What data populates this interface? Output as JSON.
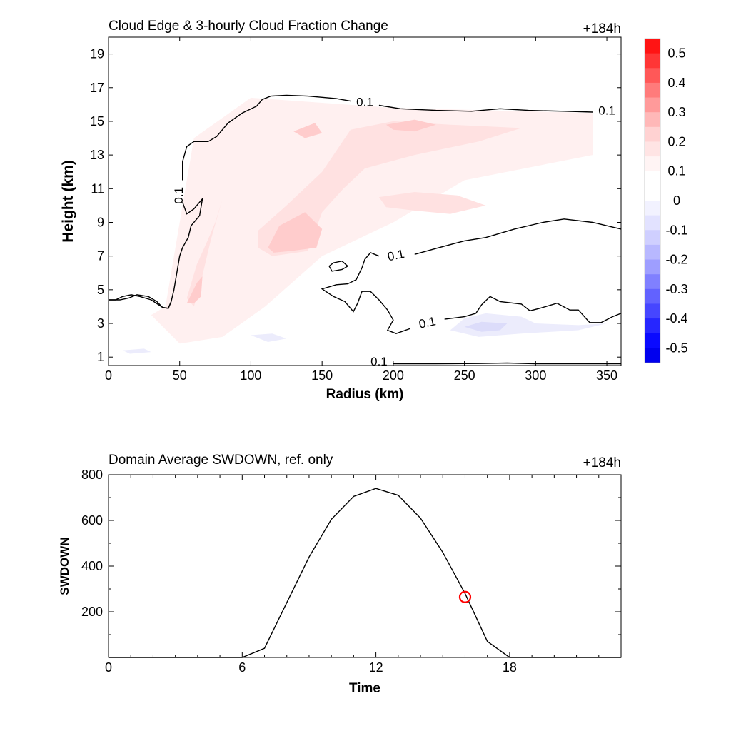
{
  "chart_data": [
    {
      "type": "contour",
      "title": "Cloud Edge & 3-hourly Cloud Fraction Change",
      "time_label": "+184h",
      "xlabel": "Radius (km)",
      "ylabel": "Height (km)",
      "xlim": [
        0,
        360
      ],
      "ylim": [
        0.5,
        20
      ],
      "x_ticks": [
        0,
        50,
        100,
        150,
        200,
        250,
        300,
        350
      ],
      "y_ticks": [
        1,
        3,
        5,
        7,
        9,
        11,
        13,
        15,
        17,
        19
      ],
      "contour_level": "0.1",
      "contour_labels": [
        {
          "text": "0.1",
          "x": 180,
          "y": 16.1
        },
        {
          "text": "0.1",
          "x": 350,
          "y": 15.6
        },
        {
          "text": "0.1",
          "x": 50,
          "y": 10.6
        },
        {
          "text": "0.1",
          "x": 202,
          "y": 7.0
        },
        {
          "text": "0.1",
          "x": 224,
          "y": 3.0
        },
        {
          "text": "0.1",
          "x": 190,
          "y": 0.7
        }
      ],
      "contour_lines": [
        [
          [
            52,
            11.5
          ],
          [
            52,
            12.6
          ],
          [
            55,
            13.5
          ],
          [
            60,
            13.8
          ],
          [
            70,
            13.8
          ],
          [
            76,
            14.1
          ],
          [
            84,
            14.9
          ],
          [
            94,
            15.5
          ],
          [
            104,
            15.9
          ],
          [
            108,
            16.3
          ],
          [
            114,
            16.5
          ],
          [
            125,
            16.55
          ],
          [
            140,
            16.5
          ],
          [
            160,
            16.35
          ],
          [
            170,
            16.2
          ]
        ],
        [
          [
            190,
            15.95
          ],
          [
            205,
            15.75
          ],
          [
            230,
            15.65
          ],
          [
            255,
            15.6
          ],
          [
            275,
            15.75
          ],
          [
            295,
            15.65
          ],
          [
            320,
            15.6
          ],
          [
            340,
            15.55
          ]
        ],
        [
          [
            52,
            10.2
          ],
          [
            55,
            9.5
          ],
          [
            60,
            9.8
          ],
          [
            66,
            10.4
          ],
          [
            64,
            9.4
          ],
          [
            58,
            8.8
          ],
          [
            56,
            8.1
          ],
          [
            52,
            7.5
          ],
          [
            50,
            7.0
          ],
          [
            48,
            6.0
          ],
          [
            46,
            5.0
          ],
          [
            44,
            4.3
          ],
          [
            42,
            3.9
          ],
          [
            38,
            3.95
          ],
          [
            34,
            4.3
          ],
          [
            28,
            4.6
          ],
          [
            20,
            4.7
          ],
          [
            14,
            4.5
          ],
          [
            8,
            4.4
          ],
          [
            0,
            4.4
          ]
        ],
        [
          [
            0,
            4.4
          ],
          [
            5,
            4.4
          ],
          [
            10,
            4.6
          ],
          [
            16,
            4.7
          ],
          [
            22,
            4.6
          ],
          [
            30,
            4.4
          ],
          [
            38,
            3.95
          ],
          [
            42,
            3.9
          ],
          [
            44,
            4.3
          ]
        ],
        [
          [
            190,
            7.0
          ],
          [
            184,
            7.2
          ],
          [
            180,
            6.8
          ],
          [
            178,
            6.3
          ],
          [
            174,
            5.6
          ],
          [
            168,
            5.35
          ],
          [
            160,
            5.3
          ],
          [
            150,
            5.05
          ],
          [
            158,
            4.6
          ],
          [
            166,
            4.3
          ],
          [
            172,
            3.7
          ],
          [
            175,
            4.2
          ],
          [
            178,
            4.9
          ],
          [
            184,
            4.9
          ],
          [
            190,
            4.4
          ],
          [
            196,
            3.8
          ],
          [
            200,
            3.2
          ],
          [
            196,
            2.6
          ],
          [
            202,
            2.4
          ],
          [
            212,
            2.7
          ]
        ],
        [
          [
            215,
            7.1
          ],
          [
            232,
            7.5
          ],
          [
            250,
            7.9
          ],
          [
            265,
            8.1
          ],
          [
            285,
            8.6
          ],
          [
            305,
            9.0
          ],
          [
            320,
            9.2
          ],
          [
            340,
            9.0
          ],
          [
            360,
            8.6
          ]
        ],
        [
          [
            155,
            6.4
          ],
          [
            158,
            6.6
          ],
          [
            164,
            6.7
          ],
          [
            168,
            6.4
          ],
          [
            164,
            6.2
          ],
          [
            157,
            6.1
          ],
          [
            155,
            6.4
          ]
        ],
        [
          [
            236,
            3.25
          ],
          [
            250,
            3.4
          ],
          [
            258,
            3.6
          ],
          [
            262,
            4.1
          ],
          [
            268,
            4.6
          ],
          [
            275,
            4.3
          ],
          [
            290,
            4.15
          ],
          [
            296,
            3.75
          ],
          [
            303,
            3.9
          ],
          [
            315,
            4.2
          ],
          [
            324,
            3.8
          ],
          [
            330,
            3.8
          ],
          [
            338,
            3.05
          ],
          [
            346,
            3.05
          ],
          [
            354,
            3.4
          ],
          [
            360,
            3.6
          ]
        ],
        [
          [
            200,
            0.6
          ],
          [
            230,
            0.6
          ],
          [
            260,
            0.62
          ],
          [
            280,
            0.65
          ],
          [
            300,
            0.6
          ],
          [
            330,
            0.6
          ],
          [
            360,
            0.6
          ]
        ]
      ],
      "shaded_regions": [
        {
          "level": 0.05,
          "color": "#fff0f0",
          "polygon": [
            [
              40,
              4
            ],
            [
              60,
              14
            ],
            [
              100,
              16.4
            ],
            [
              200,
              15.8
            ],
            [
              340,
              15.5
            ],
            [
              340,
              13
            ],
            [
              250,
              11.5
            ],
            [
              200,
              9
            ],
            [
              150,
              7
            ],
            [
              110,
              4
            ],
            [
              80,
              2.2
            ],
            [
              50,
              1.8
            ],
            [
              30,
              3.5
            ]
          ]
        },
        {
          "level": 0.1,
          "color": "#ffe1e1",
          "polygon": [
            [
              105,
              8.5
            ],
            [
              125,
              10
            ],
            [
              150,
              12
            ],
            [
              170,
              14.5
            ],
            [
              200,
              15
            ],
            [
              240,
              14.8
            ],
            [
              290,
              14.6
            ],
            [
              260,
              13.8
            ],
            [
              215,
              13
            ],
            [
              180,
              12.2
            ],
            [
              165,
              11
            ],
            [
              150,
              9.6
            ],
            [
              140,
              7.3
            ],
            [
              115,
              7
            ],
            [
              105,
              7.5
            ]
          ]
        },
        {
          "level": 0.1,
          "color": "#ffe1e1",
          "polygon": [
            [
              75,
              9
            ],
            [
              80,
              10.4
            ],
            [
              72,
              8
            ],
            [
              65,
              5.5
            ],
            [
              60,
              4
            ],
            [
              55,
              4.5
            ],
            [
              62,
              6.5
            ],
            [
              70,
              8
            ]
          ]
        },
        {
          "level": 0.1,
          "color": "#ffe1e1",
          "polygon": [
            [
              190,
              10.5
            ],
            [
              215,
              10.8
            ],
            [
              245,
              10.6
            ],
            [
              265,
              10
            ],
            [
              240,
              9.5
            ],
            [
              215,
              9.7
            ],
            [
              195,
              9.9
            ]
          ]
        },
        {
          "level": 0.15,
          "color": "#ffcccc",
          "polygon": [
            [
              112,
              7.5
            ],
            [
              120,
              8.8
            ],
            [
              138,
              9.6
            ],
            [
              150,
              8.6
            ],
            [
              146,
              7.5
            ],
            [
              128,
              7.3
            ],
            [
              116,
              7.2
            ]
          ]
        },
        {
          "level": 0.15,
          "color": "#ffcccc",
          "polygon": [
            [
              195,
              14.8
            ],
            [
              215,
              15.1
            ],
            [
              230,
              14.8
            ],
            [
              215,
              14.4
            ],
            [
              200,
              14.5
            ]
          ]
        },
        {
          "level": 0.15,
          "color": "#ffcccc",
          "polygon": [
            [
              130,
              14.4
            ],
            [
              145,
              14.9
            ],
            [
              150,
              14.3
            ],
            [
              138,
              14.0
            ]
          ]
        },
        {
          "level": 0.15,
          "color": "#ffcccc",
          "polygon": [
            [
              55,
              4.2
            ],
            [
              62,
              5.4
            ],
            [
              66,
              5.8
            ],
            [
              65,
              4.6
            ],
            [
              60,
              4.2
            ]
          ]
        },
        {
          "level": -0.1,
          "color": "#ececfc",
          "polygon": [
            [
              240,
              2.6
            ],
            [
              250,
              3.3
            ],
            [
              265,
              3.6
            ],
            [
              290,
              3.4
            ],
            [
              300,
              3.0
            ],
            [
              330,
              2.9
            ],
            [
              350,
              3.0
            ],
            [
              330,
              2.6
            ],
            [
              290,
              2.4
            ],
            [
              260,
              2.2
            ]
          ]
        },
        {
          "level": -0.15,
          "color": "#dcdcfa",
          "polygon": [
            [
              250,
              2.8
            ],
            [
              262,
              3.1
            ],
            [
              280,
              3.0
            ],
            [
              275,
              2.6
            ],
            [
              262,
              2.5
            ]
          ]
        },
        {
          "level": -0.1,
          "color": "#ececfc",
          "polygon": [
            [
              100,
              2.3
            ],
            [
              115,
              2.4
            ],
            [
              125,
              2.1
            ],
            [
              112,
              1.9
            ]
          ]
        },
        {
          "level": -0.1,
          "color": "#ececfc",
          "polygon": [
            [
              10,
              1.4
            ],
            [
              25,
              1.5
            ],
            [
              30,
              1.3
            ],
            [
              15,
              1.2
            ]
          ]
        }
      ],
      "colorbar": {
        "levels": [
          "0.5",
          "0.4",
          "0.3",
          "0.2",
          "0.1",
          "0",
          "-0.1",
          "-0.2",
          "-0.3",
          "-0.4",
          "-0.5"
        ],
        "colors": [
          "#ff1414",
          "#ff3636",
          "#ff5858",
          "#ff7b7b",
          "#ff9a9a",
          "#ffb8b8",
          "#ffd2d2",
          "#ffe4e4",
          "#fff4f4",
          "#ffffff",
          "#ffffff",
          "#f2f2ff",
          "#e2e2ff",
          "#cfcfff",
          "#b8b8ff",
          "#9e9eff",
          "#8080ff",
          "#6262ff",
          "#4646ff",
          "#2626ff",
          "#0a0aff",
          "#0000ee"
        ]
      }
    },
    {
      "type": "line",
      "title": "Domain Average SWDOWN, ref. only",
      "time_label": "+184h",
      "xlabel": "Time",
      "ylabel": "SWDOWN",
      "xlim": [
        0,
        23
      ],
      "ylim": [
        0,
        800
      ],
      "x_ticks": [
        0,
        6,
        12,
        18
      ],
      "y_ticks": [
        200,
        400,
        600,
        800
      ],
      "series": [
        {
          "x": [
            0,
            6,
            7,
            8,
            9,
            10,
            11,
            12,
            13,
            14,
            15,
            16,
            17,
            18,
            23
          ],
          "y": [
            0,
            0,
            40,
            240,
            440,
            605,
            705,
            740,
            710,
            610,
            460,
            280,
            70,
            0,
            0
          ]
        }
      ],
      "marker": {
        "x": 16,
        "y": 265,
        "color": "#ff0000"
      }
    }
  ]
}
